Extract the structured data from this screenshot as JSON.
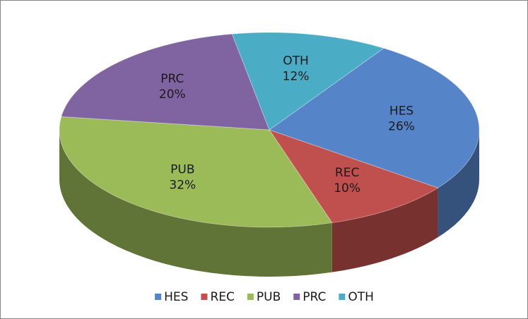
{
  "chart_data": {
    "type": "pie3d",
    "categories": [
      "HES",
      "REC",
      "PUB",
      "PRC",
      "OTH"
    ],
    "values": [
      26,
      10,
      32,
      20,
      12
    ],
    "value_labels": [
      "26%",
      "10%",
      "32%",
      "20%",
      "12%"
    ],
    "colors": [
      "#5585c8",
      "#c0504d",
      "#9bbb59",
      "#8064a2",
      "#4bacc6"
    ],
    "legend": "bottom"
  }
}
